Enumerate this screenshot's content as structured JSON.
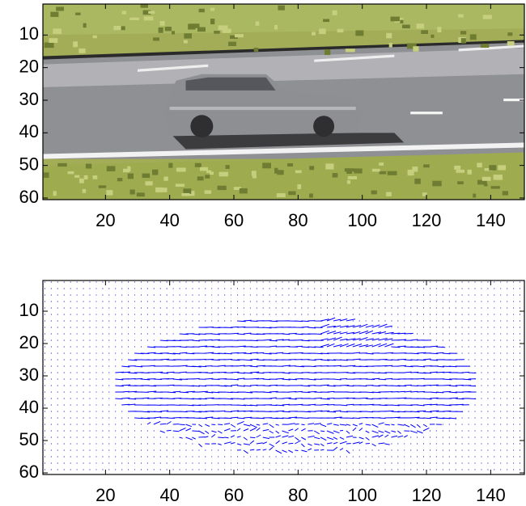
{
  "chart_data": [
    {
      "type": "image",
      "xlim": [
        0.5,
        150.5
      ],
      "ylim": [
        0.5,
        60.5
      ],
      "y_reverse": true,
      "xticks": [
        20,
        40,
        60,
        80,
        100,
        120,
        140
      ],
      "yticks": [
        10,
        20,
        30,
        40,
        50,
        60
      ]
    },
    {
      "type": "quiver",
      "color": "#0000ff",
      "xlim": [
        0.5,
        150.5
      ],
      "ylim": [
        0.5,
        60.5
      ],
      "y_reverse": true,
      "xticks": [
        20,
        40,
        60,
        80,
        100,
        120,
        140
      ],
      "yticks": [
        10,
        20,
        30,
        40,
        50,
        60
      ]
    }
  ]
}
